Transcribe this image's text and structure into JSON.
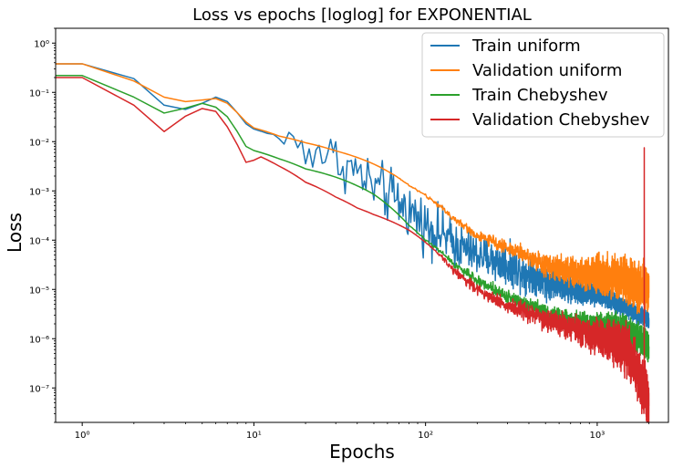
{
  "chart_data": {
    "type": "line",
    "title": "Loss vs epochs [loglog] for EXPONENTIAL",
    "xlabel": "Epochs",
    "ylabel": "Loss",
    "xscale": "log",
    "yscale": "log",
    "xlim": [
      0.7,
      2600
    ],
    "ylim": [
      2e-08,
      2.0
    ],
    "x_ticks": [
      1,
      10,
      100,
      1000
    ],
    "x_tick_labels": [
      "10⁰",
      "10¹",
      "10²",
      "10³"
    ],
    "y_ticks": [
      1e-07,
      1e-06,
      1e-05,
      0.0001,
      0.001,
      0.01,
      0.1,
      1
    ],
    "y_tick_labels": [
      "10⁻⁷",
      "10⁻⁶",
      "10⁻⁵",
      "10⁻⁴",
      "10⁻³",
      "10⁻²",
      "10⁻¹",
      "10⁰"
    ],
    "grid": false,
    "legend_position": "top-right",
    "series": [
      {
        "name": "Train uniform",
        "color": "#1f77b4",
        "points": [
          [
            0,
            0.38
          ],
          [
            1,
            0.38
          ],
          [
            2,
            0.19
          ],
          [
            3,
            0.055
          ],
          [
            4,
            0.045
          ],
          [
            5,
            0.06
          ],
          [
            6,
            0.08
          ],
          [
            7,
            0.065
          ],
          [
            9,
            0.023
          ],
          [
            10,
            0.018
          ],
          [
            14,
            0.012
          ],
          [
            20,
            0.008
          ],
          [
            30,
            0.0045
          ],
          [
            50,
            0.0012
          ],
          [
            80,
            0.0004
          ],
          [
            100,
            0.0002
          ],
          [
            150,
            8e-05
          ],
          [
            200,
            5e-05
          ],
          [
            300,
            3e-05
          ],
          [
            500,
            1.5e-05
          ],
          [
            800,
            9e-06
          ],
          [
            1000,
            8e-06
          ],
          [
            1500,
            4e-06
          ],
          [
            2000,
            2.5e-06
          ]
        ],
        "noise": [
          [
            0,
            0
          ],
          [
            12,
            0
          ],
          [
            18,
            0.9
          ],
          [
            60,
            1.1
          ],
          [
            200,
            0.8
          ],
          [
            1000,
            0.4
          ],
          [
            2000,
            0.3
          ]
        ]
      },
      {
        "name": "Validation uniform",
        "color": "#ff7f0e",
        "points": [
          [
            0,
            0.38
          ],
          [
            1,
            0.38
          ],
          [
            2,
            0.17
          ],
          [
            3,
            0.08
          ],
          [
            4,
            0.065
          ],
          [
            5,
            0.07
          ],
          [
            6,
            0.075
          ],
          [
            7,
            0.06
          ],
          [
            9,
            0.025
          ],
          [
            10,
            0.019
          ],
          [
            14,
            0.013
          ],
          [
            20,
            0.0095
          ],
          [
            30,
            0.0065
          ],
          [
            50,
            0.0035
          ],
          [
            80,
            0.0013
          ],
          [
            100,
            0.0008
          ],
          [
            150,
            0.00025
          ],
          [
            200,
            0.00012
          ],
          [
            300,
            7e-05
          ],
          [
            500,
            3e-05
          ],
          [
            800,
            2.2e-05
          ],
          [
            1000,
            2e-05
          ],
          [
            1500,
            1.5e-05
          ],
          [
            2000,
            1e-05
          ]
        ],
        "noise": [
          [
            0,
            0
          ],
          [
            60,
            0
          ],
          [
            150,
            0.15
          ],
          [
            500,
            0.4
          ],
          [
            1000,
            0.7
          ],
          [
            1800,
            0.9
          ],
          [
            2000,
            0.9
          ]
        ]
      },
      {
        "name": "Train Chebyshev",
        "color": "#2ca02c",
        "points": [
          [
            0,
            0.22
          ],
          [
            1,
            0.22
          ],
          [
            2,
            0.08
          ],
          [
            3,
            0.038
          ],
          [
            4,
            0.048
          ],
          [
            5,
            0.06
          ],
          [
            6,
            0.05
          ],
          [
            7,
            0.032
          ],
          [
            9,
            0.008
          ],
          [
            10,
            0.0066
          ],
          [
            14,
            0.0045
          ],
          [
            20,
            0.0028
          ],
          [
            30,
            0.0019
          ],
          [
            50,
            0.00085
          ],
          [
            80,
            0.0002
          ],
          [
            100,
            0.0001
          ],
          [
            150,
            3e-05
          ],
          [
            200,
            1.5e-05
          ],
          [
            300,
            7e-06
          ],
          [
            500,
            3.5e-06
          ],
          [
            700,
            2.2e-06
          ],
          [
            1000,
            2e-06
          ],
          [
            1500,
            1.5e-06
          ],
          [
            2000,
            7e-07
          ]
        ],
        "noise": [
          [
            0,
            0
          ],
          [
            80,
            0
          ],
          [
            150,
            0.15
          ],
          [
            300,
            0.25
          ],
          [
            800,
            0.35
          ],
          [
            2000,
            0.6
          ]
        ]
      },
      {
        "name": "Validation Chebyshev",
        "color": "#d62728",
        "points": [
          [
            0,
            0.2
          ],
          [
            1,
            0.2
          ],
          [
            2,
            0.055
          ],
          [
            3,
            0.016
          ],
          [
            4,
            0.033
          ],
          [
            5,
            0.047
          ],
          [
            6,
            0.041
          ],
          [
            7,
            0.02
          ],
          [
            9,
            0.0038
          ],
          [
            10,
            0.0042
          ],
          [
            11,
            0.0049
          ],
          [
            14,
            0.0032
          ],
          [
            20,
            0.0015
          ],
          [
            30,
            0.00075
          ],
          [
            40,
            0.00045
          ],
          [
            50,
            0.00033
          ],
          [
            80,
            0.00016
          ],
          [
            100,
            9e-05
          ],
          [
            150,
            2.2e-05
          ],
          [
            200,
            1e-05
          ],
          [
            300,
            4.5e-06
          ],
          [
            500,
            2.4e-06
          ],
          [
            800,
            1.3e-06
          ],
          [
            1000,
            1.1e-06
          ],
          [
            1500,
            6e-07
          ],
          [
            2000,
            5e-08
          ]
        ],
        "noise": [
          [
            0,
            0
          ],
          [
            100,
            0
          ],
          [
            150,
            0.2
          ],
          [
            400,
            0.35
          ],
          [
            1000,
            0.6
          ],
          [
            1500,
            0.9
          ],
          [
            2000,
            1.0
          ]
        ],
        "spike": [
          [
            1880,
            0.0075
          ],
          [
            1905,
            7e-08
          ]
        ]
      }
    ]
  }
}
